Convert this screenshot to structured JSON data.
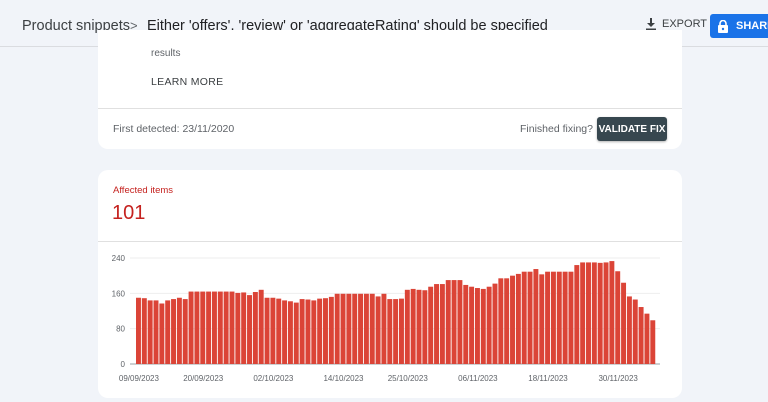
{
  "header": {
    "breadcrumb_parent": "Product snippets",
    "breadcrumb_separator": ">",
    "title": "Either 'offers', 'review' or 'aggregateRating' should be specified",
    "export_label": "EXPORT",
    "export_icon": "download-icon",
    "share_label": "SHARE",
    "share_icon": "lock-icon"
  },
  "issue_card": {
    "description_tail": "results",
    "learn_more": "LEARN MORE",
    "first_detected": "First detected: 23/11/2020",
    "finished_fixing": "Finished fixing?",
    "validate_fix": "VALIDATE FIX"
  },
  "affected": {
    "label": "Affected items",
    "value": "101"
  },
  "colors": {
    "accent": "#1a73e8",
    "error": "#c5221f",
    "bar": "#db4437",
    "validate": "#37474f"
  },
  "chart_data": {
    "type": "bar",
    "yticks": [
      0,
      80,
      160,
      240
    ],
    "ylim": [
      0,
      240
    ],
    "grid": true,
    "xtick_labels": [
      "09/09/2023",
      "20/09/2023",
      "02/10/2023",
      "14/10/2023",
      "25/10/2023",
      "06/11/2023",
      "18/11/2023",
      "30/11/2023"
    ],
    "x": [
      "09/09/2023",
      "10/09/2023",
      "11/09/2023",
      "12/09/2023",
      "13/09/2023",
      "14/09/2023",
      "15/09/2023",
      "16/09/2023",
      "17/09/2023",
      "18/09/2023",
      "19/09/2023",
      "20/09/2023",
      "21/09/2023",
      "22/09/2023",
      "23/09/2023",
      "24/09/2023",
      "25/09/2023",
      "26/09/2023",
      "27/09/2023",
      "28/09/2023",
      "29/09/2023",
      "30/09/2023",
      "01/10/2023",
      "02/10/2023",
      "03/10/2023",
      "04/10/2023",
      "05/10/2023",
      "06/10/2023",
      "07/10/2023",
      "08/10/2023",
      "09/10/2023",
      "10/10/2023",
      "11/10/2023",
      "12/10/2023",
      "13/10/2023",
      "14/10/2023",
      "15/10/2023",
      "16/10/2023",
      "17/10/2023",
      "18/10/2023",
      "19/10/2023",
      "20/10/2023",
      "21/10/2023",
      "22/10/2023",
      "23/10/2023",
      "24/10/2023",
      "25/10/2023",
      "26/10/2023",
      "27/10/2023",
      "28/10/2023",
      "29/10/2023",
      "30/10/2023",
      "31/10/2023",
      "01/11/2023",
      "02/11/2023",
      "03/11/2023",
      "04/11/2023",
      "05/11/2023",
      "06/11/2023",
      "07/11/2023",
      "08/11/2023",
      "09/11/2023",
      "10/11/2023",
      "11/11/2023",
      "12/11/2023",
      "13/11/2023",
      "14/11/2023",
      "15/11/2023",
      "16/11/2023",
      "17/11/2023",
      "18/11/2023",
      "19/11/2023",
      "20/11/2023",
      "21/11/2023",
      "22/11/2023",
      "23/11/2023",
      "24/11/2023",
      "25/11/2023",
      "26/11/2023",
      "27/11/2023",
      "28/11/2023",
      "29/11/2023",
      "30/11/2023",
      "01/12/2023",
      "02/12/2023",
      "03/12/2023",
      "04/12/2023",
      "05/12/2023",
      "06/12/2023"
    ],
    "values": [
      150,
      149,
      144,
      144,
      137,
      144,
      147,
      150,
      147,
      164,
      164,
      164,
      164,
      164,
      164,
      164,
      164,
      161,
      162,
      156,
      163,
      168,
      150,
      150,
      148,
      144,
      142,
      139,
      147,
      146,
      144,
      148,
      149,
      152,
      159,
      159,
      159,
      159,
      159,
      159,
      159,
      153,
      159,
      147,
      147,
      148,
      168,
      170,
      168,
      167,
      175,
      181,
      181,
      190,
      190,
      190,
      179,
      175,
      172,
      170,
      175,
      182,
      194,
      194,
      200,
      204,
      209,
      209,
      215,
      203,
      209,
      209,
      209,
      209,
      209,
      224,
      230,
      230,
      230,
      229,
      230,
      233,
      210,
      184,
      153,
      146,
      129,
      114,
      99
    ]
  }
}
